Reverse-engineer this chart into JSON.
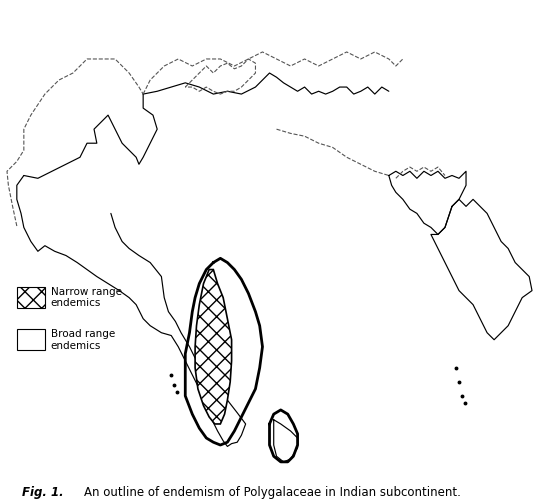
{
  "background_color": "#ffffff",
  "legend_narrow_label": "Narrow range\nendemics",
  "legend_broad_label": "Broad range\nendemics",
  "legend_fontsize": 7.5,
  "caption_bold": "Fig. 1.",
  "caption_text": "An outline of endemism of Polygalaceae in Indian subcontinent.",
  "caption_fontsize": 8.5,
  "figsize": [
    5.39,
    5.04
  ],
  "dpi": 100,
  "xlim": [
    60.5,
    98.5
  ],
  "ylim": [
    6.0,
    37.5
  ]
}
